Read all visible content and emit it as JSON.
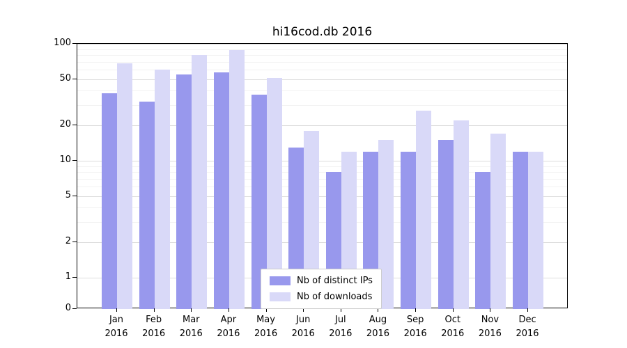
{
  "title": "hi16cod.db 2016",
  "chart_data": {
    "type": "bar",
    "title": "hi16cod.db 2016",
    "scale": "symlog",
    "xlabel": "",
    "ylabel": "",
    "ylim": [
      0,
      100
    ],
    "grid": true,
    "legend_position": "lower center",
    "categories": [
      "Jan 2016",
      "Feb 2016",
      "Mar 2016",
      "Apr 2016",
      "May 2016",
      "Jun 2016",
      "Jul 2016",
      "Aug 2016",
      "Sep 2016",
      "Oct 2016",
      "Nov 2016",
      "Dec 2016"
    ],
    "series": [
      {
        "name": "Nb of distinct IPs",
        "color": "#9898ed",
        "values": [
          38,
          32,
          55,
          57,
          37,
          13,
          8,
          12,
          12,
          15,
          8,
          12
        ]
      },
      {
        "name": "Nb of downloads",
        "color": "#d9d9f8",
        "values": [
          68,
          60,
          80,
          88,
          51,
          18,
          12,
          15,
          27,
          22,
          17,
          12
        ]
      }
    ],
    "yticks": [
      0,
      1,
      2,
      5,
      10,
      20,
      50,
      100
    ],
    "minor_yticks": [
      3,
      4,
      6,
      7,
      8,
      9,
      30,
      40,
      60,
      70,
      80,
      90
    ],
    "colors": {
      "grid_major": "#dcdcdc",
      "grid_minor": "#f2f2f2",
      "axis": "#000000",
      "background": "#ffffff"
    }
  }
}
